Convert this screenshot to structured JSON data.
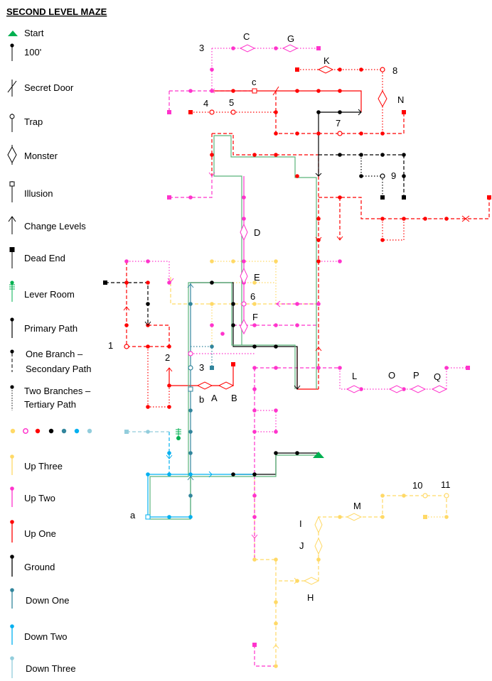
{
  "title": "SECOND LEVEL MAZE",
  "colors": {
    "up_three": "#FFD966",
    "up_two": "#FF33CC",
    "up_one": "#FF0000",
    "ground": "#000000",
    "down_one": "#31859C",
    "down_two": "#00B0F0",
    "down_three": "#92CDDC",
    "start": "#00B050",
    "primary_outline": "#5BB57A"
  },
  "legend": {
    "start": "Start",
    "hundred_feet": "100'",
    "secret_door": "Secret Door",
    "trap": "Trap",
    "monster": "Monster",
    "illusion": "Illusion",
    "change_levels": "Change Levels",
    "dead_end": "Dead End",
    "lever_room": "Lever Room",
    "primary_path": "Primary Path",
    "secondary_path_1": "One Branch –",
    "secondary_path_2": "Secondary Path",
    "tertiary_path_1": "Two Branches –",
    "tertiary_path_2": "Tertiary Path",
    "up_three": "Up Three",
    "up_two": "Up Two",
    "up_one": "Up One",
    "ground": "Ground",
    "down_one": "Down One",
    "down_two": "Down Two",
    "down_three": "Down Three"
  },
  "labels": {
    "n1": "1",
    "n2": "2",
    "n3": "3",
    "n3b": "3",
    "n4": "4",
    "n5": "5",
    "n6": "6",
    "n7": "7",
    "n8": "8",
    "n9": "9",
    "n10": "10",
    "n11": "11",
    "A": "A",
    "B": "B",
    "C": "C",
    "D": "D",
    "E": "E",
    "F": "F",
    "G": "G",
    "H": "H",
    "I": "I",
    "J": "J",
    "K": "K",
    "L": "L",
    "M": "M",
    "N": "N",
    "O": "O",
    "P": "P",
    "Q": "Q",
    "a": "a",
    "b": "b",
    "c": "c"
  }
}
